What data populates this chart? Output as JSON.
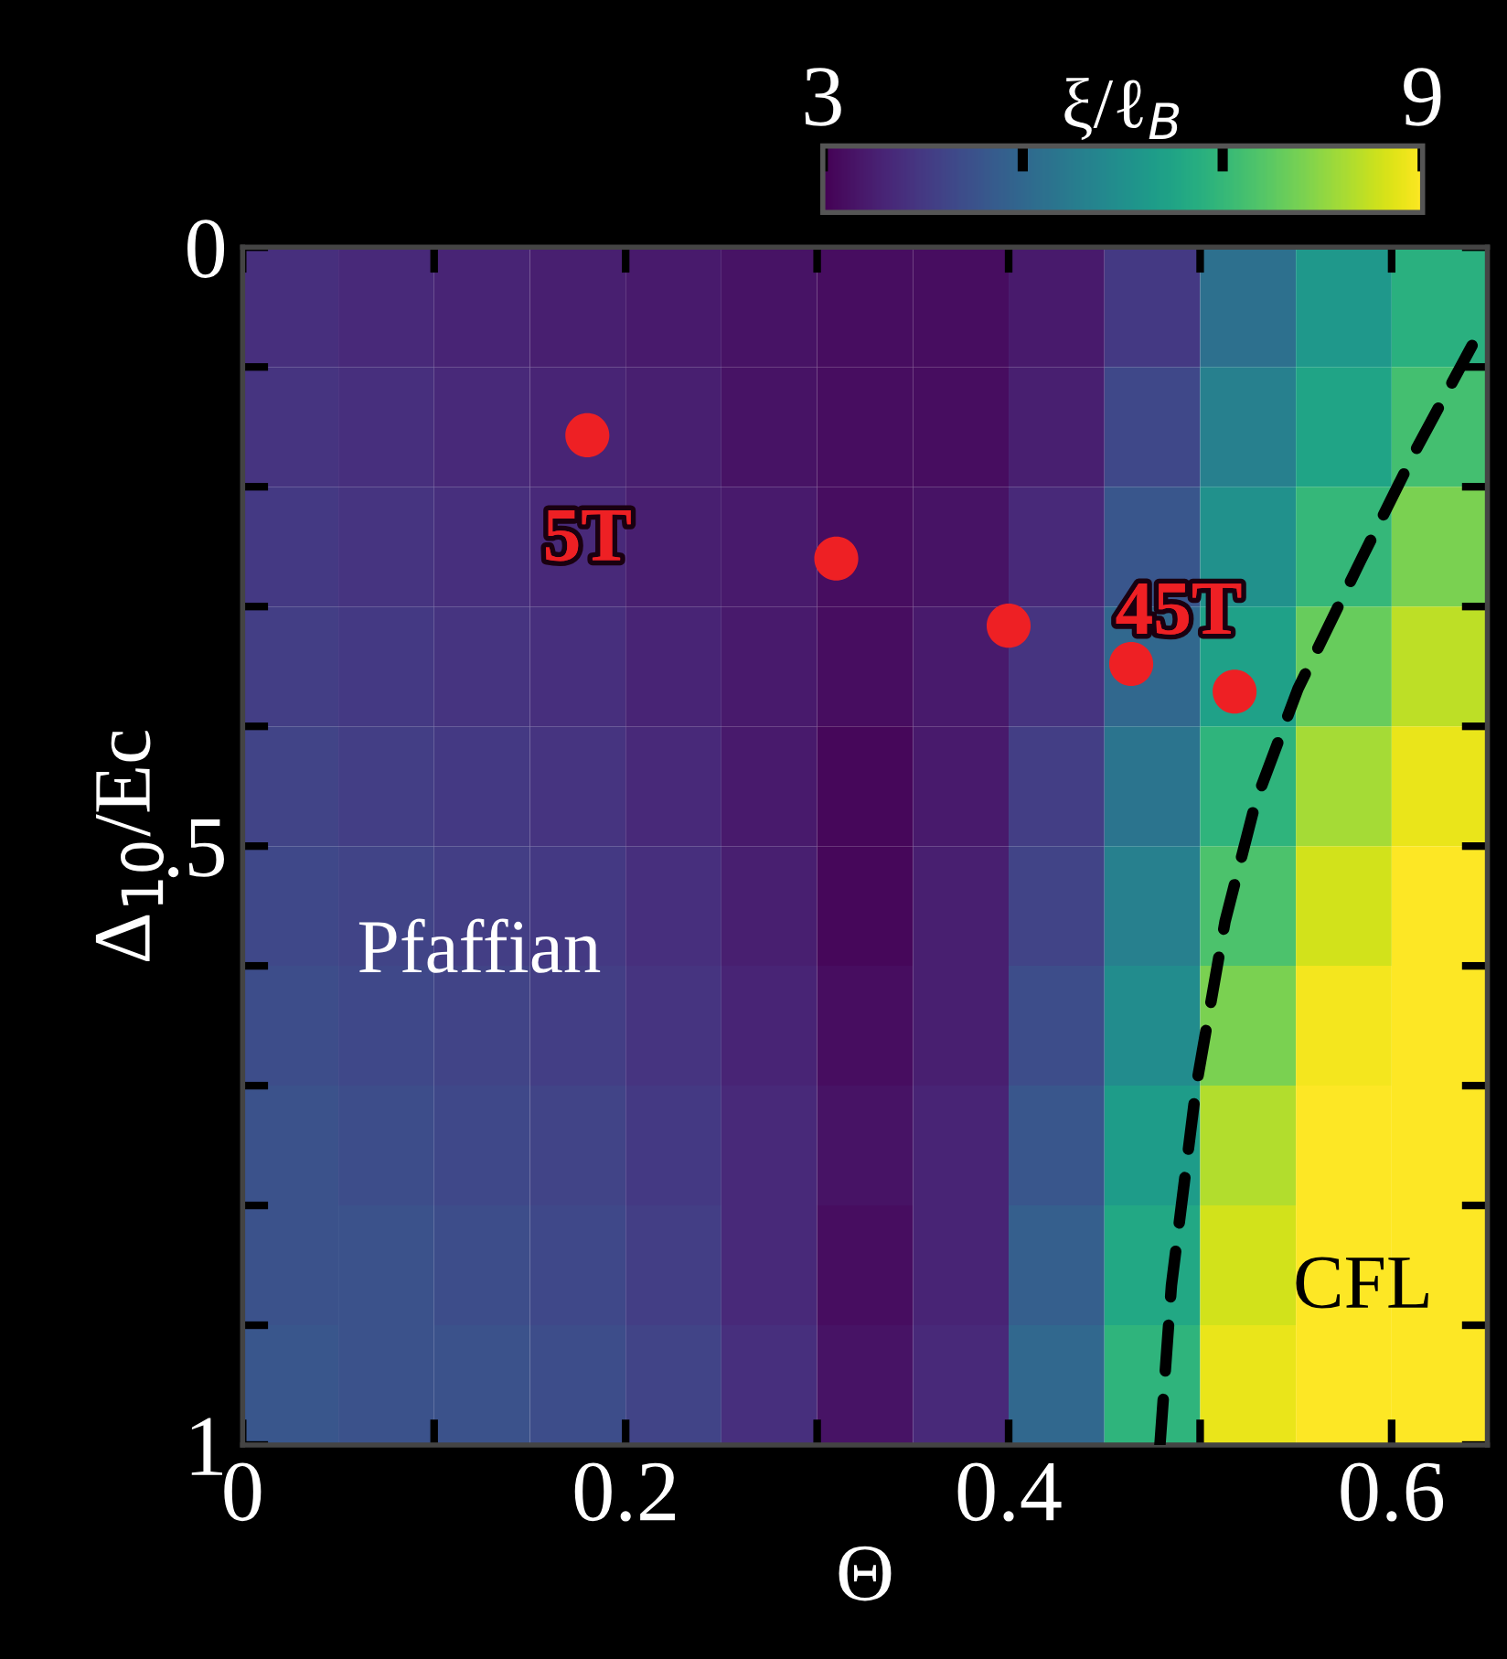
{
  "chart_data": {
    "type": "heatmap",
    "xlabel": "Θ",
    "ylabel": "Δ$_{10}$/Ec",
    "clabel": "ξ/ℓ$_{B}$",
    "x": [
      0.025,
      0.075,
      0.125,
      0.175,
      0.225,
      0.275,
      0.325,
      0.375,
      0.425,
      0.475,
      0.525,
      0.575,
      0.625
    ],
    "y": [
      0.05,
      0.15,
      0.25,
      0.35,
      0.45,
      0.55,
      0.65,
      0.75,
      0.85,
      0.95
    ],
    "cells": [
      [
        3.8,
        3.7,
        3.6,
        3.5,
        3.4,
        3.3,
        3.2,
        3.2,
        3.4,
        4.0,
        5.2,
        6.2,
        6.8
      ],
      [
        3.9,
        3.8,
        3.7,
        3.6,
        3.5,
        3.3,
        3.2,
        3.2,
        3.5,
        4.3,
        5.6,
        6.5,
        7.2
      ],
      [
        4.0,
        3.9,
        3.8,
        3.7,
        3.5,
        3.4,
        3.2,
        3.3,
        3.7,
        4.6,
        6.0,
        7.0,
        7.8
      ],
      [
        4.1,
        4.0,
        3.9,
        3.8,
        3.6,
        3.4,
        3.2,
        3.4,
        3.9,
        5.0,
        6.4,
        7.6,
        8.4
      ],
      [
        4.2,
        4.1,
        4.0,
        3.9,
        3.7,
        3.4,
        3.1,
        3.4,
        4.1,
        5.3,
        6.9,
        8.2,
        8.8
      ],
      [
        4.3,
        4.2,
        4.1,
        4.0,
        3.8,
        3.5,
        3.1,
        3.5,
        4.2,
        5.6,
        7.3,
        8.6,
        9.0
      ],
      [
        4.4,
        4.3,
        4.2,
        4.1,
        3.9,
        3.6,
        3.2,
        3.5,
        4.4,
        5.9,
        7.8,
        8.9,
        9.0
      ],
      [
        4.5,
        4.4,
        4.3,
        4.2,
        4.0,
        3.7,
        3.3,
        3.6,
        4.6,
        6.3,
        8.3,
        9.0,
        9.0
      ],
      [
        4.5,
        4.5,
        4.4,
        4.3,
        4.1,
        3.7,
        3.2,
        3.6,
        4.8,
        6.6,
        8.6,
        9.0,
        9.0
      ],
      [
        4.6,
        4.5,
        4.5,
        4.4,
        4.2,
        3.8,
        3.3,
        3.7,
        5.0,
        6.9,
        8.8,
        9.0,
        9.0
      ]
    ],
    "clim": [
      3,
      9
    ],
    "cticks": [
      3,
      {
        "value": 5,
        "label": null
      },
      {
        "value": 7,
        "label": null
      },
      9
    ],
    "xlim": [
      0,
      0.65
    ],
    "ylim": [
      1,
      0
    ],
    "xticks": [
      0,
      {
        "value": 0.1,
        "label": null
      },
      0.2,
      {
        "value": 0.3,
        "label": null
      },
      0.4,
      {
        "value": 0.5,
        "label": null
      },
      0.6
    ],
    "yticks": [
      0,
      {
        "value": 0.1,
        "label": null
      },
      {
        "value": 0.2,
        "label": null
      },
      {
        "value": 0.3,
        "label": null
      },
      {
        "value": 0.4,
        "label": null
      },
      {
        "value": 0.5,
        "label": ".5"
      },
      {
        "value": 0.6,
        "label": null
      },
      {
        "value": 0.7,
        "label": null
      },
      {
        "value": 0.8,
        "label": null
      },
      {
        "value": 0.9,
        "label": null
      },
      1
    ],
    "series": [
      {
        "type": "scatter",
        "color": "#ee2024",
        "marker": "circle",
        "x": [
          0.18,
          0.31,
          0.4,
          0.464,
          0.518
        ],
        "values": [
          0.157,
          0.26,
          0.316,
          0.348,
          0.371
        ]
      },
      {
        "type": "line",
        "color": "#000000",
        "line_style": "dashed",
        "marker": "none",
        "x": [
          0.479,
          0.485,
          0.498,
          0.513,
          0.529,
          0.551,
          0.584,
          0.613,
          0.642
        ],
        "values": [
          1.0,
          0.867,
          0.7,
          0.563,
          0.463,
          0.369,
          0.261,
          0.168,
          0.082
        ]
      }
    ],
    "annotations": [
      {
        "text": "5T",
        "x": 0.18,
        "y": 0.157
      },
      {
        "text": "45T",
        "x": 0.518,
        "y": 0.371
      },
      "Pfaffian",
      "CFL"
    ],
    "grid": false,
    "legend": false
  }
}
